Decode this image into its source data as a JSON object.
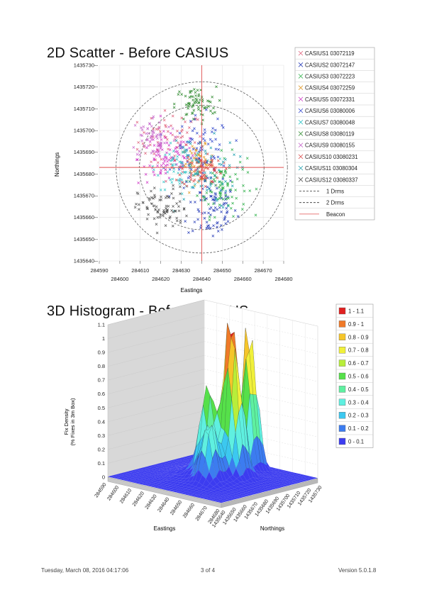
{
  "page": {
    "footer_left": "Tuesday, March 08, 2016 04:17:06",
    "footer_center": "3 of 4",
    "footer_right": "Version 5.0.1.8"
  },
  "chart_data": [
    {
      "type": "scatter",
      "title": "2D Scatter - Before CASIUS",
      "xlabel": "Eastings",
      "ylabel": "Northings",
      "xlim": [
        284590,
        284680
      ],
      "ylim": [
        1435640,
        1435730
      ],
      "x_ticks": [
        284590,
        284600,
        284610,
        284620,
        284630,
        284640,
        284650,
        284660,
        284670,
        284680
      ],
      "y_ticks": [
        1435640,
        1435650,
        1435660,
        1435670,
        1435680,
        1435690,
        1435700,
        1435710,
        1435720,
        1435730
      ],
      "grid": true,
      "legend_position": "right",
      "beacon": {
        "x": 284640,
        "y": 1435683
      },
      "drms": {
        "one_drms_radius": 32,
        "two_drms_radius": 44
      },
      "series": [
        {
          "name": "CASIUS1 03072119",
          "color": "#e0607a",
          "cx": 284625,
          "cy": 1435695,
          "sx": 8,
          "sy": 7,
          "n": 70
        },
        {
          "name": "CASIUS2 03072147",
          "color": "#2a3fb8",
          "cx": 284645,
          "cy": 1435665,
          "sx": 6,
          "sy": 8,
          "n": 90
        },
        {
          "name": "CASIUS3 03072223",
          "color": "#2fb14a",
          "cx": 284650,
          "cy": 1435675,
          "sx": 6,
          "sy": 7,
          "n": 85
        },
        {
          "name": "CASIUS4 03072259",
          "color": "#e09a2a",
          "cx": 284638,
          "cy": 1435685,
          "sx": 4,
          "sy": 4,
          "n": 70
        },
        {
          "name": "CASIUS5 03072331",
          "color": "#d13ac7",
          "cx": 284623,
          "cy": 1435687,
          "sx": 7,
          "sy": 6,
          "n": 80
        },
        {
          "name": "CASIUS6 03080006",
          "color": "#3348cc",
          "cx": 284640,
          "cy": 1435690,
          "sx": 7,
          "sy": 8,
          "n": 80
        },
        {
          "name": "CASIUS7 03080048",
          "color": "#36c6c9",
          "cx": 284630,
          "cy": 1435683,
          "sx": 6,
          "sy": 5,
          "n": 70
        },
        {
          "name": "CASIUS8 03080119",
          "color": "#2f8a2f",
          "cx": 284637,
          "cy": 1435712,
          "sx": 5,
          "sy": 4,
          "n": 70
        },
        {
          "name": "CASIUS9 03080155",
          "color": "#c86ccc",
          "cx": 284617,
          "cy": 1435697,
          "sx": 6,
          "sy": 5,
          "n": 60
        },
        {
          "name": "CASIUS10 03080231",
          "color": "#d94848",
          "cx": 284640,
          "cy": 1435682,
          "sx": 5,
          "sy": 4,
          "n": 70
        },
        {
          "name": "CASIUS11 03080304",
          "color": "#20a0b0",
          "cx": 284641,
          "cy": 1435680,
          "sx": 8,
          "sy": 8,
          "n": 60
        },
        {
          "name": "CASIUS12 03080337",
          "color": "#555555",
          "cx": 284621,
          "cy": 1435664,
          "sx": 6,
          "sy": 5,
          "n": 80
        }
      ],
      "legend_extra": [
        {
          "name": "1 Drms",
          "style": "dash",
          "color": "#333333"
        },
        {
          "name": "2 Drms",
          "style": "dash",
          "color": "#333333"
        },
        {
          "name": "Beacon",
          "style": "line",
          "color": "#e05050"
        }
      ]
    },
    {
      "type": "heatmap",
      "title": "3D Histogram - Before CASIUS",
      "xlabel": "Eastings",
      "ylabel": "Northings",
      "zlabel": "Fix Density\n(% Fixes in 3m Box)",
      "zlim": [
        0,
        1.1
      ],
      "z_ticks": [
        "0",
        "0.1",
        "0.2",
        "0.3",
        "0.4",
        "0.5",
        "0.6",
        "0.7",
        "0.8",
        "0.9",
        "1",
        "1.1"
      ],
      "x_ticks": [
        "284590",
        "284600",
        "284610",
        "284620",
        "284630",
        "284640",
        "284650",
        "284660",
        "284670",
        "284680"
      ],
      "y_ticks": [
        "1435640",
        "1435650",
        "1435660",
        "1435670",
        "1435680",
        "1435690",
        "1435700",
        "1435710",
        "1435720",
        "1435730"
      ],
      "legend": [
        {
          "label": "1 - 1.1",
          "color": "#e02020"
        },
        {
          "label": "0.9 - 1",
          "color": "#f07a28"
        },
        {
          "label": "0.8 - 0.9",
          "color": "#f5c52a"
        },
        {
          "label": "0.7 - 0.8",
          "color": "#f0f03a"
        },
        {
          "label": "0.6 - 0.7",
          "color": "#b8ee3a"
        },
        {
          "label": "0.5 - 0.6",
          "color": "#56e04a"
        },
        {
          "label": "0.4 - 0.5",
          "color": "#5ef0a0"
        },
        {
          "label": "0.3 - 0.4",
          "color": "#5ff0e0"
        },
        {
          "label": "0.2 - 0.3",
          "color": "#3cc8f0"
        },
        {
          "label": "0.1 - 0.2",
          "color": "#3c7cf0"
        },
        {
          "label": "0 - 0.1",
          "color": "#3c3cf0"
        }
      ],
      "peaks": [
        {
          "x": 284640,
          "y": 1435713,
          "z": 1.0
        },
        {
          "x": 284644,
          "y": 1435690,
          "z": 0.75
        },
        {
          "x": 284650,
          "y": 1435690,
          "z": 0.55
        },
        {
          "x": 284635,
          "y": 1435680,
          "z": 0.5
        },
        {
          "x": 284645,
          "y": 1435670,
          "z": 0.38
        },
        {
          "x": 284625,
          "y": 1435700,
          "z": 0.3
        }
      ]
    }
  ]
}
